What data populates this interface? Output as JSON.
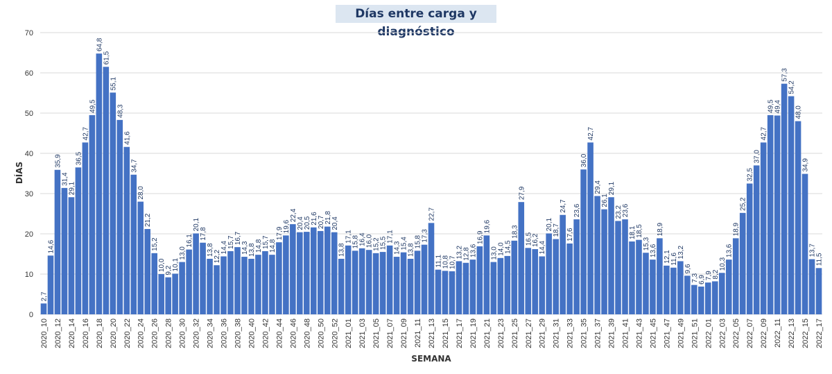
{
  "chart_data": {
    "type": "bar",
    "title": "Días entre carga y diagnóstico",
    "xlabel": "SEMANA",
    "ylabel": "DÍAS",
    "ylim": [
      0,
      70
    ],
    "yticks": [
      0,
      10,
      20,
      30,
      40,
      50,
      60,
      70
    ],
    "grid": "horizontal",
    "legend": "none",
    "bar_color": "#4472c4",
    "categories": [
      "2020_10",
      "2020_11",
      "2020_12",
      "2020_13",
      "2020_14",
      "2020_15",
      "2020_16",
      "2020_17",
      "2020_18",
      "2020_19",
      "2020_20",
      "2020_21",
      "2020_22",
      "2020_23",
      "2020_24",
      "2020_25",
      "2020_26",
      "2020_27",
      "2020_28",
      "2020_29",
      "2020_30",
      "2020_31",
      "2020_32",
      "2020_33",
      "2020_34",
      "2020_35",
      "2020_36",
      "2020_37",
      "2020_38",
      "2020_39",
      "2020_40",
      "2020_41",
      "2020_42",
      "2020_43",
      "2020_44",
      "2020_45",
      "2020_46",
      "2020_47",
      "2020_48",
      "2020_49",
      "2020_50",
      "2020_51",
      "2020_52",
      "2020_53",
      "2021_01",
      "2021_02",
      "2021_03",
      "2021_04",
      "2021_05",
      "2021_06",
      "2021_07",
      "2021_08",
      "2021_09",
      "2021_10",
      "2021_11",
      "2021_12",
      "2021_13",
      "2021_14",
      "2021_15",
      "2021_16",
      "2021_17",
      "2021_18",
      "2021_19",
      "2021_20",
      "2021_21",
      "2021_22",
      "2021_23",
      "2021_24",
      "2021_25",
      "2021_26",
      "2021_27",
      "2021_28",
      "2021_29",
      "2021_30",
      "2021_31",
      "2021_32",
      "2021_33",
      "2021_34",
      "2021_35",
      "2021_36",
      "2021_37",
      "2021_38",
      "2021_39",
      "2021_40",
      "2021_41",
      "2021_42",
      "2021_43",
      "2021_44",
      "2021_45",
      "2021_46",
      "2021_47",
      "2021_48",
      "2021_49",
      "2021_50",
      "2021_51",
      "2021_52",
      "2022_01",
      "2022_02",
      "2022_03",
      "2022_04",
      "2022_05",
      "2022_06",
      "2022_07",
      "2022_08",
      "2022_09",
      "2022_10",
      "2022_11",
      "2022_12",
      "2022_13",
      "2022_14",
      "2022_15",
      "2022_16",
      "2022_17"
    ],
    "visible_xticks": [
      "2020_10",
      "2020_12",
      "2020_14",
      "2020_16",
      "2020_18",
      "2020_20",
      "2020_22",
      "2020_24",
      "2020_26",
      "2020_28",
      "2020_30",
      "2020_32",
      "2020_34",
      "2020_36",
      "2020_38",
      "2020_40",
      "2020_42",
      "2020_44",
      "2020_46",
      "2020_48",
      "2020_50",
      "2020_52",
      "2021_01",
      "2021_03",
      "2021_05",
      "2021_07",
      "2021_09",
      "2021_11",
      "2021_13",
      "2021_15",
      "2021_17",
      "2021_19",
      "2021_21",
      "2021_23",
      "2021_25",
      "2021_27",
      "2021_29",
      "2021_31",
      "2021_33",
      "2021_35",
      "2021_37",
      "2021_39",
      "2021_41",
      "2021_43",
      "2021_45",
      "2021_47",
      "2021_49",
      "2021_51",
      "2022_01",
      "2022_03",
      "2022_05",
      "2022_07",
      "2022_09",
      "2022_11",
      "2022_13",
      "2022_15",
      "2022_17"
    ],
    "values": [
      2.7,
      14.6,
      35.9,
      31.4,
      29.1,
      36.5,
      42.7,
      49.5,
      64.8,
      61.5,
      55.1,
      48.3,
      41.6,
      34.7,
      28.0,
      21.2,
      15.2,
      10.0,
      9.2,
      10.1,
      13.0,
      16.1,
      20.1,
      17.8,
      13.8,
      12.2,
      14.4,
      15.7,
      16.7,
      14.3,
      13.8,
      14.8,
      15.7,
      14.8,
      17.9,
      19.6,
      22.4,
      20.4,
      20.5,
      21.6,
      20.7,
      21.8,
      20.4,
      13.8,
      17.1,
      15.8,
      16.4,
      16.0,
      15.2,
      15.5,
      17.1,
      14.3,
      15.4,
      13.8,
      15.8,
      17.3,
      22.7,
      11.1,
      10.8,
      10.7,
      13.2,
      12.8,
      13.6,
      16.9,
      19.6,
      13.0,
      14.0,
      14.5,
      18.3,
      27.9,
      16.5,
      16.2,
      14.4,
      20.1,
      18.7,
      24.7,
      17.6,
      23.6,
      36.0,
      42.7,
      29.4,
      26.1,
      29.1,
      23.2,
      23.6,
      18.1,
      18.5,
      15.3,
      13.6,
      18.9,
      12.1,
      11.6,
      13.2,
      9.6,
      7.3,
      6.9,
      7.9,
      8.2,
      10.3,
      13.6,
      18.9,
      25.2,
      32.5,
      37.0,
      42.7,
      49.5,
      49.4,
      57.3,
      54.2,
      48.0,
      34.9,
      13.7,
      11.5
    ],
    "data_labels": [
      "2,7",
      "14,6",
      "35,9",
      "31,4",
      "29,1",
      "36,5",
      "42,7",
      "49,5",
      "64,8",
      "61,5",
      "55,1",
      "48,3",
      "41,6",
      "34,7",
      "28,0",
      "21,2",
      "15,2",
      "10,0",
      "9,2",
      "10,1",
      "13,0",
      "16,1",
      "20,1",
      "17,8",
      "13,8",
      "12,2",
      "14,4",
      "15,7",
      "16,7",
      "14,3",
      "13,8",
      "14,8",
      "15,7",
      "14,8",
      "17,9",
      "19,6",
      "22,4",
      "20,4",
      "20,5",
      "21,6",
      "20,7",
      "21,8",
      "20,4",
      "13,8",
      "17,1",
      "15,8",
      "16,4",
      "16,0",
      "15,2",
      "15,5",
      "17,1",
      "14,3",
      "15,4",
      "13,8",
      "15,8",
      "17,3",
      "22,7",
      "11,1",
      "10,8",
      "10,7",
      "13,2",
      "12,8",
      "13,6",
      "16,9",
      "19,6",
      "13,0",
      "14,0",
      "14,5",
      "18,3",
      "27,9",
      "16,5",
      "16,2",
      "14,4",
      "20,1",
      "18,7",
      "24,7",
      "17,6",
      "23,6",
      "36,0",
      "42,7",
      "29,4",
      "26,1",
      "29,1",
      "23,2",
      "23,6",
      "18,1",
      "18,5",
      "15,3",
      "13,6",
      "18,9",
      "12,1",
      "11,6",
      "13,2",
      "9,6",
      "7,3",
      "6,9",
      "7,9",
      "8,2",
      "10,3",
      "13,6",
      "18,9",
      "25,2",
      "32,5",
      "37,0",
      "42,7",
      "49,5",
      "49,4",
      "57,3",
      "54,2",
      "48,0",
      "34,9",
      "13,7",
      "11,5"
    ]
  }
}
